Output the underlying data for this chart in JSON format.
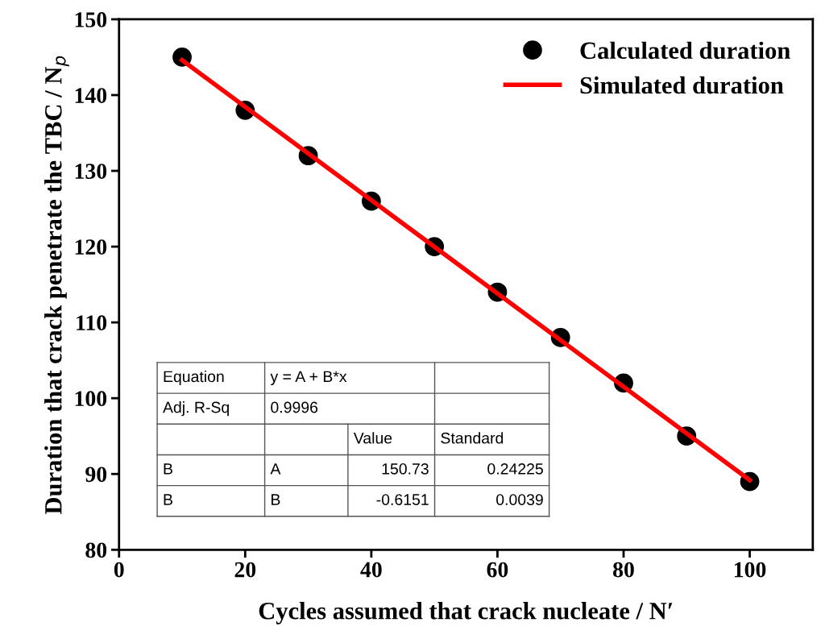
{
  "chart_data": {
    "type": "scatter",
    "xlabel": "Cycles assumed that crack nucleate / N′",
    "ylabel": "Duration that crack penetrate the TBC / N$_{p}$",
    "series": [
      {
        "name": "Calculated duration",
        "color": "#000000",
        "marker": "circle",
        "x": [
          10,
          20,
          30,
          40,
          50,
          60,
          70,
          80,
          90,
          100
        ],
        "values": [
          145,
          138,
          132,
          126,
          120,
          114,
          108,
          102,
          95,
          89
        ]
      },
      {
        "name": "Simulated duration",
        "type": "line",
        "color": "#ff0000",
        "marker": "none",
        "line_style": "solid",
        "x": [
          10,
          100
        ],
        "values": [
          144.6,
          89.2
        ]
      }
    ],
    "xlim": [
      0,
      110
    ],
    "xticks": [
      0,
      20,
      40,
      60,
      80,
      100
    ],
    "ylim": [
      80,
      150
    ],
    "yticks": [
      80,
      90,
      100,
      110,
      120,
      130,
      140,
      150
    ],
    "grid": false,
    "legend": "top right",
    "annotations": [
      "Equation",
      "y = A + B*x",
      "Adj. R-Sq",
      "0.9996",
      "Value",
      "Standard",
      "B",
      "A",
      "150.73",
      "0.24225",
      "B",
      "B",
      "-0.6151",
      "0.0039"
    ]
  }
}
